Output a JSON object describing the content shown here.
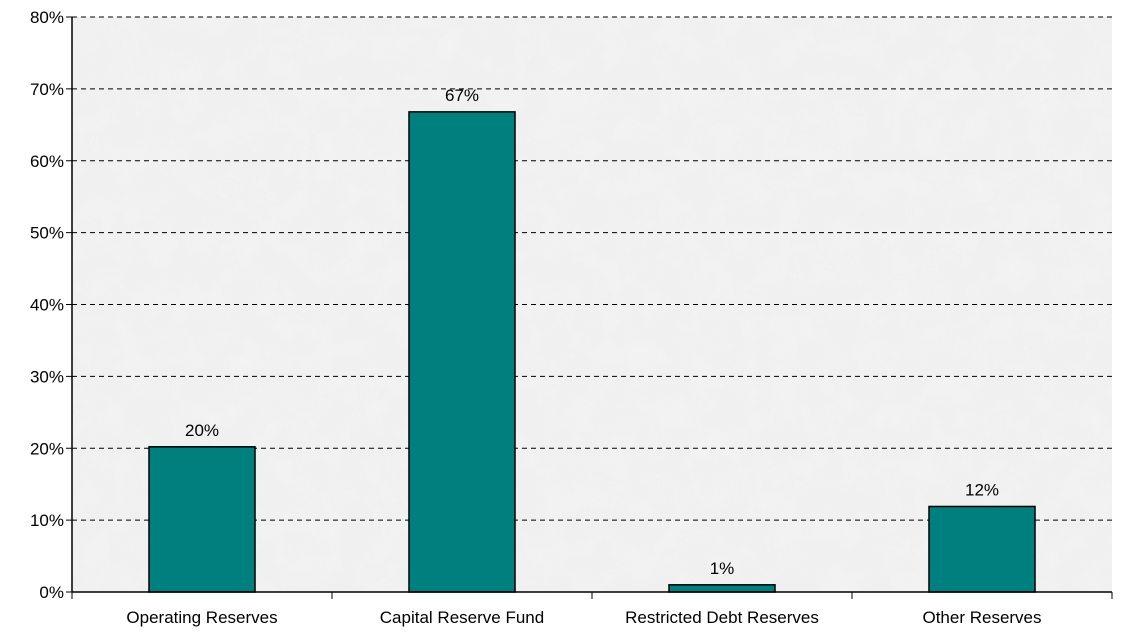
{
  "chart_data": {
    "type": "bar",
    "categories": [
      "Operating Reserves",
      "Capital Reserve Fund",
      "Restricted Debt Reserves",
      "Other Reserves"
    ],
    "values": [
      20.2,
      66.8,
      1.0,
      11.9
    ],
    "data_labels": [
      "20%",
      "67%",
      "1%",
      "12%"
    ],
    "y_ticks": [
      0,
      10,
      20,
      30,
      40,
      50,
      60,
      70,
      80
    ],
    "y_tick_labels": [
      "0%",
      "10%",
      "20%",
      "30%",
      "40%",
      "50%",
      "60%",
      "70%",
      "80%"
    ],
    "ylim": [
      0,
      80
    ],
    "title": "",
    "xlabel": "",
    "ylabel": "",
    "grid": "horizontal dashed",
    "legend": "none",
    "colors": {
      "bar_fill": "#007f7f",
      "bar_stroke": "#000000",
      "plot_background": "#f0f0f0",
      "gridline": "#000000",
      "axis": "#000000"
    }
  }
}
